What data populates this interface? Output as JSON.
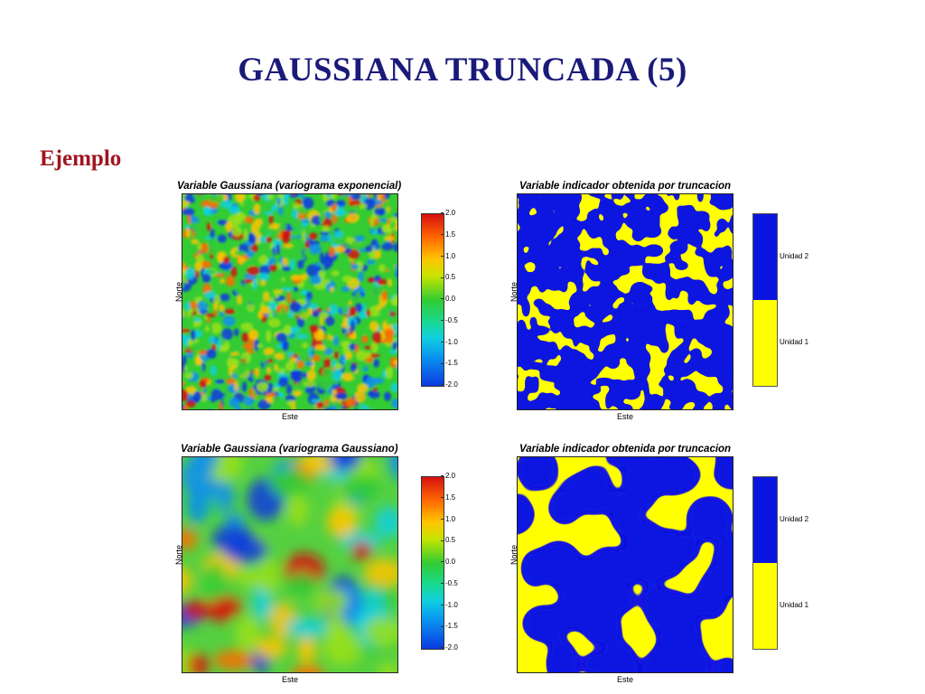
{
  "slide": {
    "title": "GAUSSIANA TRUNCADA (5)",
    "subtitle": "Ejemplo"
  },
  "panels": {
    "top_left": {
      "title": "Variable Gaussiana (variograma exponencial)",
      "xlabel": "Este",
      "ylabel": "Norte",
      "colorbar_ticks": [
        "2.0",
        "1.5",
        "1.0",
        "0.5",
        "0.0",
        "-0.5",
        "-1.0",
        "-1.5",
        "-2.0"
      ]
    },
    "top_right": {
      "title": "Variable indicador obtenida por truncacion",
      "xlabel": "Este",
      "ylabel": "Norte",
      "legend": [
        "Unidad 2",
        "Unidad 1"
      ]
    },
    "bottom_left": {
      "title": "Variable Gaussiana (variograma Gaussiano)",
      "xlabel": "Este",
      "ylabel": "Norte",
      "colorbar_ticks": [
        "2.0",
        "1.5",
        "1.0",
        "0.5",
        "0.0",
        "-0.5",
        "-1.0",
        "-1.5",
        "-2.0"
      ]
    },
    "bottom_right": {
      "title": "Variable indicador obtenida por truncacion",
      "xlabel": "Este",
      "ylabel": "Norte",
      "legend": [
        "Unidad 2",
        "Unidad 1"
      ]
    }
  },
  "colors": {
    "title": "#1a1a7a",
    "subtitle": "#a0141e",
    "unit_1": "#ffff00",
    "unit_2": "#0a16e0",
    "gaussian_high": "#d71010",
    "gaussian_mid": "#33cc33",
    "gaussian_low": "#0a3ae0"
  }
}
